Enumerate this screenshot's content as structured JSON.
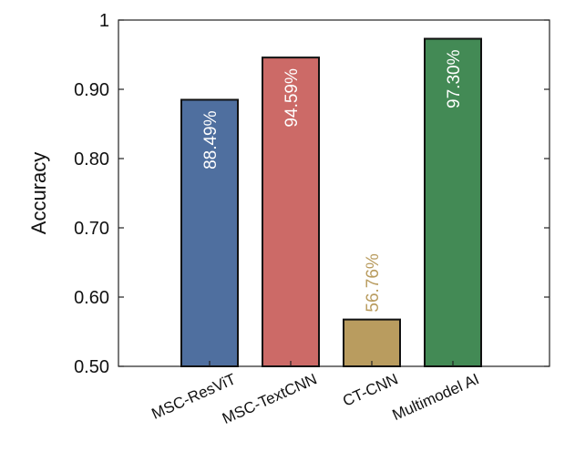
{
  "chart_data": {
    "type": "bar",
    "title": "",
    "xlabel": "",
    "ylabel": "Accuracy",
    "ylim": [
      0.5,
      1.0
    ],
    "yticks": [
      0.5,
      0.6,
      0.7,
      0.8,
      0.9,
      1.0
    ],
    "ytick_labels": [
      "0.50",
      "0.60",
      "0.70",
      "0.80",
      "0.90",
      "1"
    ],
    "grid": false,
    "categories": [
      "MSC-ResViT",
      "MSC-TextCNN",
      "CT-CNN",
      "Multimodel AI"
    ],
    "values": [
      0.8849,
      0.9459,
      0.5676,
      0.973
    ],
    "data_labels": [
      "88.49%",
      "94.59%",
      "56.76%",
      "97.30%"
    ],
    "colors": [
      "#4f6f9f",
      "#cc6a67",
      "#b99c5f",
      "#438a55"
    ],
    "label_colors": [
      "#ffffff",
      "#ffffff",
      "#b99c5f",
      "#ffffff"
    ],
    "label_inside": [
      true,
      true,
      false,
      true
    ]
  }
}
